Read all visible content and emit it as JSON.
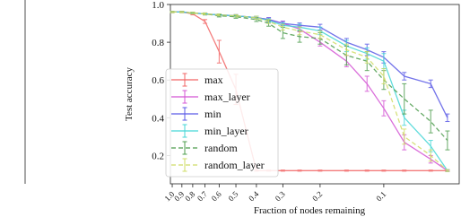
{
  "chart_data": {
    "type": "line",
    "xlabel": "Fraction of nodes remaining",
    "ylabel": "Test accuracy",
    "x": [
      1.0,
      0.9,
      0.8,
      0.7,
      0.6,
      0.5,
      0.4,
      0.35,
      0.3,
      0.25,
      0.2,
      0.15,
      0.12,
      0.1,
      0.08,
      0.06,
      0.05
    ],
    "xscale": "log",
    "xlim": [
      1.02,
      0.044
    ],
    "xticks": [
      {
        "value": 1,
        "label": "1.0"
      },
      0.9,
      0.8,
      0.7,
      0.6,
      0.5,
      0.4,
      0.3,
      0.2,
      0.1
    ],
    "ylim": [
      0.05,
      1.0
    ],
    "yticks": [
      0.2,
      0.4,
      0.6,
      0.8,
      {
        "value": 1,
        "label": "1.0"
      }
    ],
    "legend": "lower left",
    "series": [
      {
        "name": "max",
        "color": "#f26464",
        "linestyle": "solid",
        "values": [
          0.96,
          0.96,
          0.95,
          0.91,
          0.75,
          0.55,
          0.12,
          0.12,
          0.12,
          0.12,
          0.12,
          0.12,
          0.12,
          0.12,
          0.12,
          0.12,
          0.12
        ],
        "errors": [
          0.003,
          0.003,
          0.005,
          0.01,
          0.06,
          0.08,
          0.003,
          0.003,
          0.003,
          0.003,
          0.003,
          0.003,
          0.003,
          0.003,
          0.003,
          0.003,
          0.003
        ]
      },
      {
        "name": "max_layer",
        "color": "#d455d4",
        "linestyle": "solid",
        "values": [
          0.96,
          0.96,
          0.955,
          0.95,
          0.945,
          0.94,
          0.93,
          0.92,
          0.9,
          0.87,
          0.8,
          0.7,
          0.58,
          0.45,
          0.27,
          0.18,
          0.12
        ],
        "errors": [
          0.003,
          0.003,
          0.004,
          0.005,
          0.005,
          0.006,
          0.008,
          0.01,
          0.012,
          0.015,
          0.02,
          0.03,
          0.04,
          0.04,
          0.04,
          0.02,
          0.005
        ]
      },
      {
        "name": "min",
        "color": "#5a5ae6",
        "linestyle": "solid",
        "values": [
          0.96,
          0.96,
          0.955,
          0.95,
          0.945,
          0.94,
          0.93,
          0.92,
          0.9,
          0.89,
          0.88,
          0.8,
          0.76,
          0.72,
          0.62,
          0.58,
          0.4
        ],
        "errors": [
          0.003,
          0.003,
          0.004,
          0.005,
          0.005,
          0.006,
          0.008,
          0.01,
          0.01,
          0.012,
          0.015,
          0.02,
          0.03,
          0.03,
          0.02,
          0.02,
          0.02
        ]
      },
      {
        "name": "min_layer",
        "color": "#45d6d6",
        "linestyle": "solid",
        "values": [
          0.96,
          0.96,
          0.955,
          0.95,
          0.945,
          0.94,
          0.93,
          0.915,
          0.89,
          0.88,
          0.86,
          0.78,
          0.74,
          0.7,
          0.4,
          0.25,
          0.12
        ],
        "errors": [
          0.003,
          0.003,
          0.004,
          0.005,
          0.005,
          0.006,
          0.008,
          0.01,
          0.012,
          0.015,
          0.02,
          0.03,
          0.03,
          0.04,
          0.04,
          0.03,
          0.005
        ]
      },
      {
        "name": "random",
        "color": "#4c9c4c",
        "linestyle": "dashed",
        "values": [
          0.96,
          0.96,
          0.955,
          0.95,
          0.94,
          0.935,
          0.92,
          0.9,
          0.85,
          0.83,
          0.82,
          0.73,
          0.7,
          0.6,
          0.5,
          0.38,
          0.28
        ],
        "errors": [
          0.003,
          0.003,
          0.004,
          0.005,
          0.006,
          0.008,
          0.01,
          0.015,
          0.03,
          0.03,
          0.03,
          0.05,
          0.05,
          0.05,
          0.08,
          0.06,
          0.05
        ]
      },
      {
        "name": "random_layer",
        "color": "#cfdc66",
        "linestyle": "dashed",
        "values": [
          0.96,
          0.96,
          0.955,
          0.95,
          0.945,
          0.94,
          0.93,
          0.91,
          0.88,
          0.86,
          0.84,
          0.76,
          0.72,
          0.62,
          0.3,
          0.2,
          0.12
        ],
        "errors": [
          0.003,
          0.003,
          0.004,
          0.005,
          0.005,
          0.006,
          0.008,
          0.01,
          0.015,
          0.02,
          0.02,
          0.03,
          0.03,
          0.04,
          0.04,
          0.03,
          0.005
        ]
      }
    ]
  }
}
